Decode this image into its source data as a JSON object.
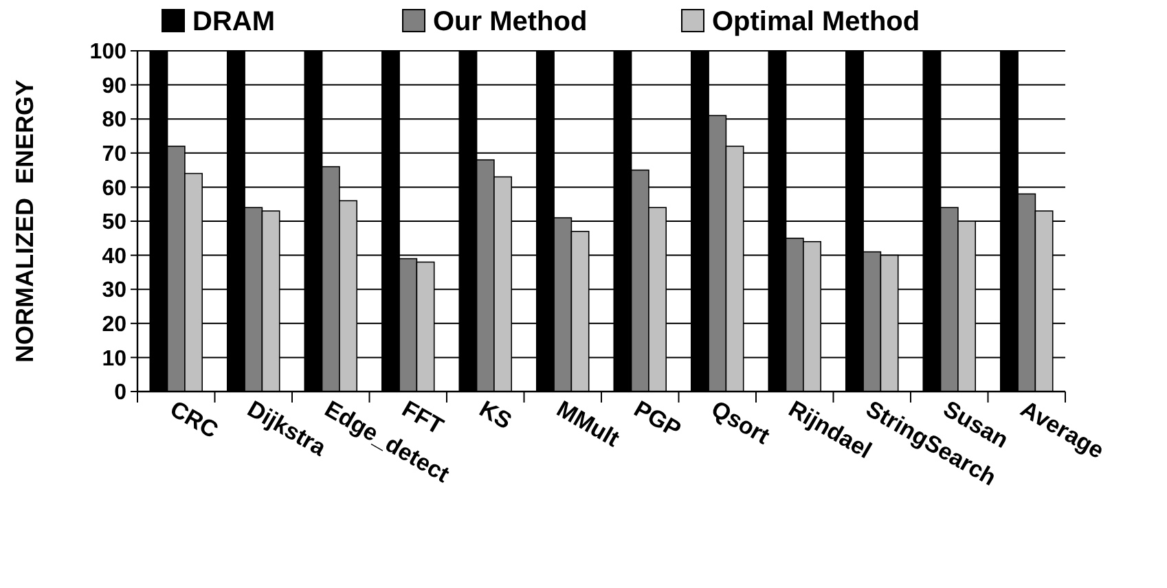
{
  "chart_data": {
    "type": "bar",
    "ylabel": "NORMALIZED  ENERGY",
    "categories": [
      "CRC",
      "Dijkstra",
      "Edge_detect",
      "FFT",
      "KS",
      "MMult",
      "PGP",
      "Qsort",
      "Rijndael",
      "StringSearch",
      "Susan",
      "Average"
    ],
    "series": [
      {
        "name": "DRAM",
        "color": "#000000",
        "values": [
          100,
          100,
          100,
          100,
          100,
          100,
          100,
          100,
          100,
          100,
          100,
          100
        ]
      },
      {
        "name": "Our Method",
        "color": "#808080",
        "values": [
          72,
          54,
          66,
          39,
          68,
          51,
          65,
          81,
          45,
          41,
          54,
          58
        ]
      },
      {
        "name": "Optimal Method",
        "color": "#c0c0c0",
        "values": [
          64,
          53,
          56,
          38,
          63,
          47,
          54,
          72,
          44,
          40,
          50,
          53
        ]
      }
    ],
    "ylim": [
      0,
      100
    ],
    "yticks": [
      0,
      10,
      20,
      30,
      40,
      50,
      60,
      70,
      80,
      90,
      100
    ],
    "grid": "y",
    "legend": "top"
  }
}
